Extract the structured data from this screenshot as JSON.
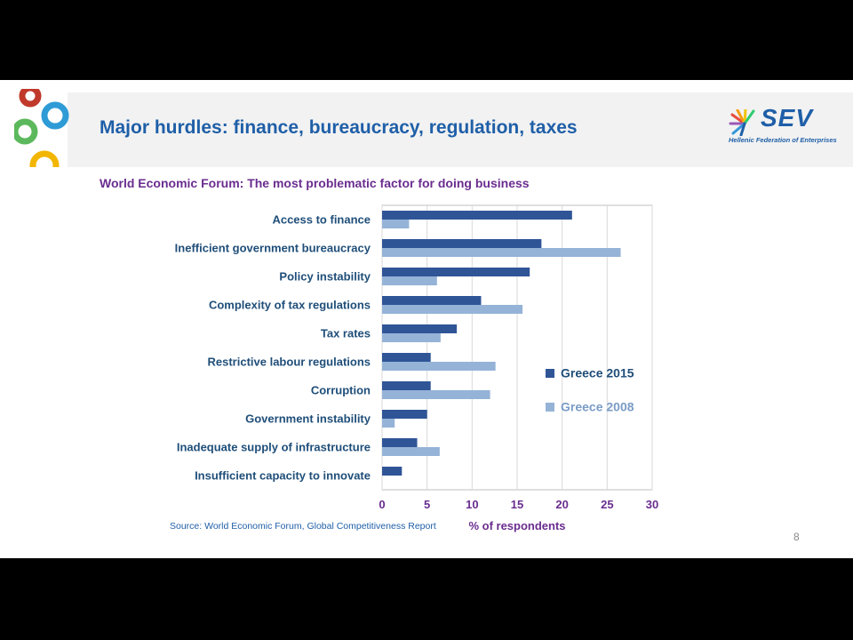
{
  "slide": {
    "title": "Major hurdles: finance, bureaucracy, regulation, taxes",
    "subtitle": "World Economic Forum: The most problematic factor for doing business",
    "source": "Source: World  Economic Forum, Global Competitiveness Report",
    "page_number": "8"
  },
  "logo": {
    "name": "SEV",
    "tagline": "Hellenic Federation of Enterprises"
  },
  "colors": {
    "title": "#1f5fa8",
    "subtitle": "#6a2d8f",
    "series_2015": "#2f5597",
    "series_2008": "#95b3d7"
  },
  "chart_data": {
    "type": "bar",
    "orientation": "horizontal",
    "categories": [
      "Access to finance",
      "Inefficient government bureaucracy",
      "Policy instability",
      "Complexity of tax regulations",
      "Tax rates",
      "Restrictive labour regulations",
      "Corruption",
      "Government instability",
      "Inadequate supply of infrastructure",
      "Insufficient capacity to innovate"
    ],
    "series": [
      {
        "name": "Greece 2015",
        "values": [
          21.1,
          17.7,
          16.4,
          11.0,
          8.3,
          5.4,
          5.4,
          5.0,
          3.9,
          2.2
        ]
      },
      {
        "name": "Greece 2008",
        "values": [
          3.0,
          26.5,
          6.1,
          15.6,
          6.5,
          12.6,
          12.0,
          1.4,
          6.4,
          0
        ]
      }
    ],
    "xlabel": "% of respondents",
    "ylabel": "",
    "xlim": [
      0,
      30
    ],
    "xticks": [
      0,
      5,
      10,
      15,
      20,
      25,
      30
    ],
    "grid": true,
    "legend_position": "right"
  }
}
